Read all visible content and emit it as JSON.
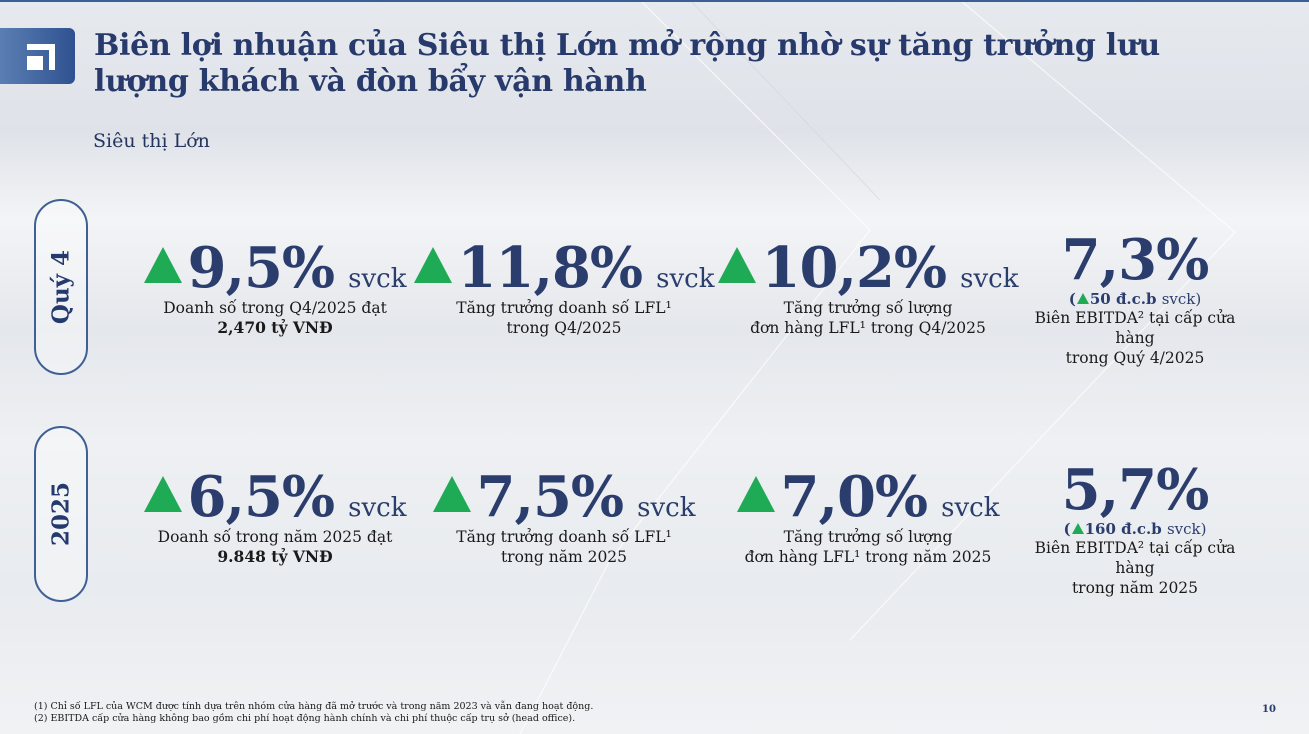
{
  "title": "Biên lợi nhuận của Siêu thị Lớn mở rộng nhờ sự tăng trưởng lưu lượng khách và đòn bẩy vận hành",
  "subtitle": "Siêu thị Lớn",
  "rows": [
    {
      "label": "Quý 4",
      "metrics": [
        {
          "value": "9,5%",
          "unit": "svck",
          "desc_line1": "Doanh số trong Q4/2025 đạt",
          "desc_line2": "2,470 tỷ VNĐ"
        },
        {
          "value": "11,8%",
          "unit": "svck",
          "desc_line1": "Tăng trưởng doanh số LFL¹",
          "desc_line2": "trong Q4/2025"
        },
        {
          "value": "10,2%",
          "unit": "svck",
          "desc_line1": "Tăng trưởng số lượng",
          "desc_line2": "đơn hàng LFL¹ trong Q4/2025"
        },
        {
          "value": "7,3%",
          "bps_open": "(",
          "bps": "50 đ.c.b",
          "bps_unit": "svck)",
          "desc_line1": "Biên EBITDA² tại cấp cửa hàng",
          "desc_line2": "trong Quý 4/2025"
        }
      ]
    },
    {
      "label": "2025",
      "metrics": [
        {
          "value": "6,5%",
          "unit": "svck",
          "desc_line1": "Doanh số trong năm 2025 đạt",
          "desc_line2": "9.848 tỷ VNĐ"
        },
        {
          "value": "7,5%",
          "unit": "svck",
          "desc_line1": "Tăng trưởng doanh số LFL¹",
          "desc_line2": "trong năm 2025"
        },
        {
          "value": "7,0%",
          "unit": "svck",
          "desc_line1": "Tăng trưởng số lượng",
          "desc_line2": "đơn hàng LFL¹ trong năm 2025"
        },
        {
          "value": "5,7%",
          "bps_open": "(",
          "bps": "160 đ.c.b",
          "bps_unit": "svck)",
          "desc_line1": "Biên EBITDA² tại cấp cửa hàng",
          "desc_line2": "trong năm 2025"
        }
      ]
    }
  ],
  "footnotes": [
    "(1) Chỉ số LFL của WCM được tính dựa trên nhóm cửa hàng đã mở trước và trong năm 2023 và vẫn đang hoạt động.",
    "(2) EBITDA cấp cửa hàng không bao gồm chi phí hoạt động hành chính và chi phí  thuộc cấp trụ sở (head office)."
  ],
  "page_number": "10",
  "colors": {
    "accent": "#273a6b",
    "up_arrow": "#1faa55",
    "logo": "#2f5190"
  },
  "icons": {
    "logo": "corner-bracket-logo",
    "up": "up-triangle-icon"
  }
}
